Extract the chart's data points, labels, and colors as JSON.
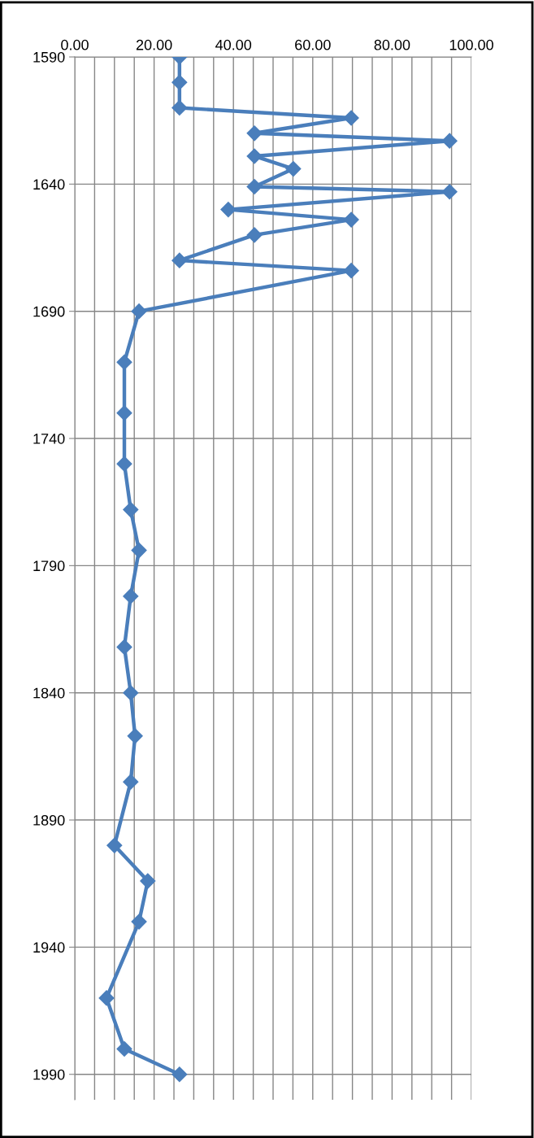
{
  "chart_data": {
    "type": "line",
    "x": [
      1590,
      1600,
      1610,
      1614,
      1620,
      1623,
      1629,
      1634,
      1641,
      1643,
      1650,
      1654,
      1660,
      1670,
      1674,
      1690,
      1710,
      1730,
      1750,
      1768,
      1784,
      1802,
      1822,
      1840,
      1857,
      1875,
      1900,
      1914,
      1930,
      1960,
      1980,
      1990
    ],
    "series": [
      {
        "color": "#4a7ebb",
        "values": [
          26.4,
          26.4,
          26.4,
          69.7,
          45.3,
          94.5,
          45.3,
          55.1,
          45.3,
          94.5,
          38.7,
          69.7,
          45.3,
          26.4,
          69.7,
          16.2,
          12.5,
          12.5,
          12.5,
          14.1,
          16.2,
          14.1,
          12.5,
          14.1,
          15.2,
          14.1,
          10.0,
          18.4,
          16.2,
          8.0,
          12.5,
          26.4
        ]
      }
    ],
    "orientation": "horizontal",
    "xlim": [
      0,
      100
    ],
    "xticks": [
      {
        "value": 0,
        "label": "0.00"
      },
      {
        "value": 5,
        "label": null
      },
      {
        "value": 10,
        "label": null
      },
      {
        "value": 15,
        "label": null
      },
      {
        "value": 20,
        "label": "20.00"
      },
      {
        "value": 25,
        "label": null
      },
      {
        "value": 30,
        "label": null
      },
      {
        "value": 35,
        "label": null
      },
      {
        "value": 40,
        "label": "40.00"
      },
      {
        "value": 45,
        "label": null
      },
      {
        "value": 50,
        "label": null
      },
      {
        "value": 55,
        "label": null
      },
      {
        "value": 60,
        "label": "60.00"
      },
      {
        "value": 65,
        "label": null
      },
      {
        "value": 70,
        "label": null
      },
      {
        "value": 75,
        "label": null
      },
      {
        "value": 80,
        "label": "80.00"
      },
      {
        "value": 85,
        "label": null
      },
      {
        "value": 90,
        "label": null
      },
      {
        "value": 95,
        "label": null
      },
      {
        "value": 100,
        "label": "100.00"
      }
    ],
    "ylim": [
      2000,
      1590
    ],
    "yticks": [
      1590,
      1640,
      1690,
      1740,
      1790,
      1840,
      1890,
      1940,
      1990
    ],
    "grid": true,
    "marker": "diamond",
    "line_style": "solid"
  }
}
